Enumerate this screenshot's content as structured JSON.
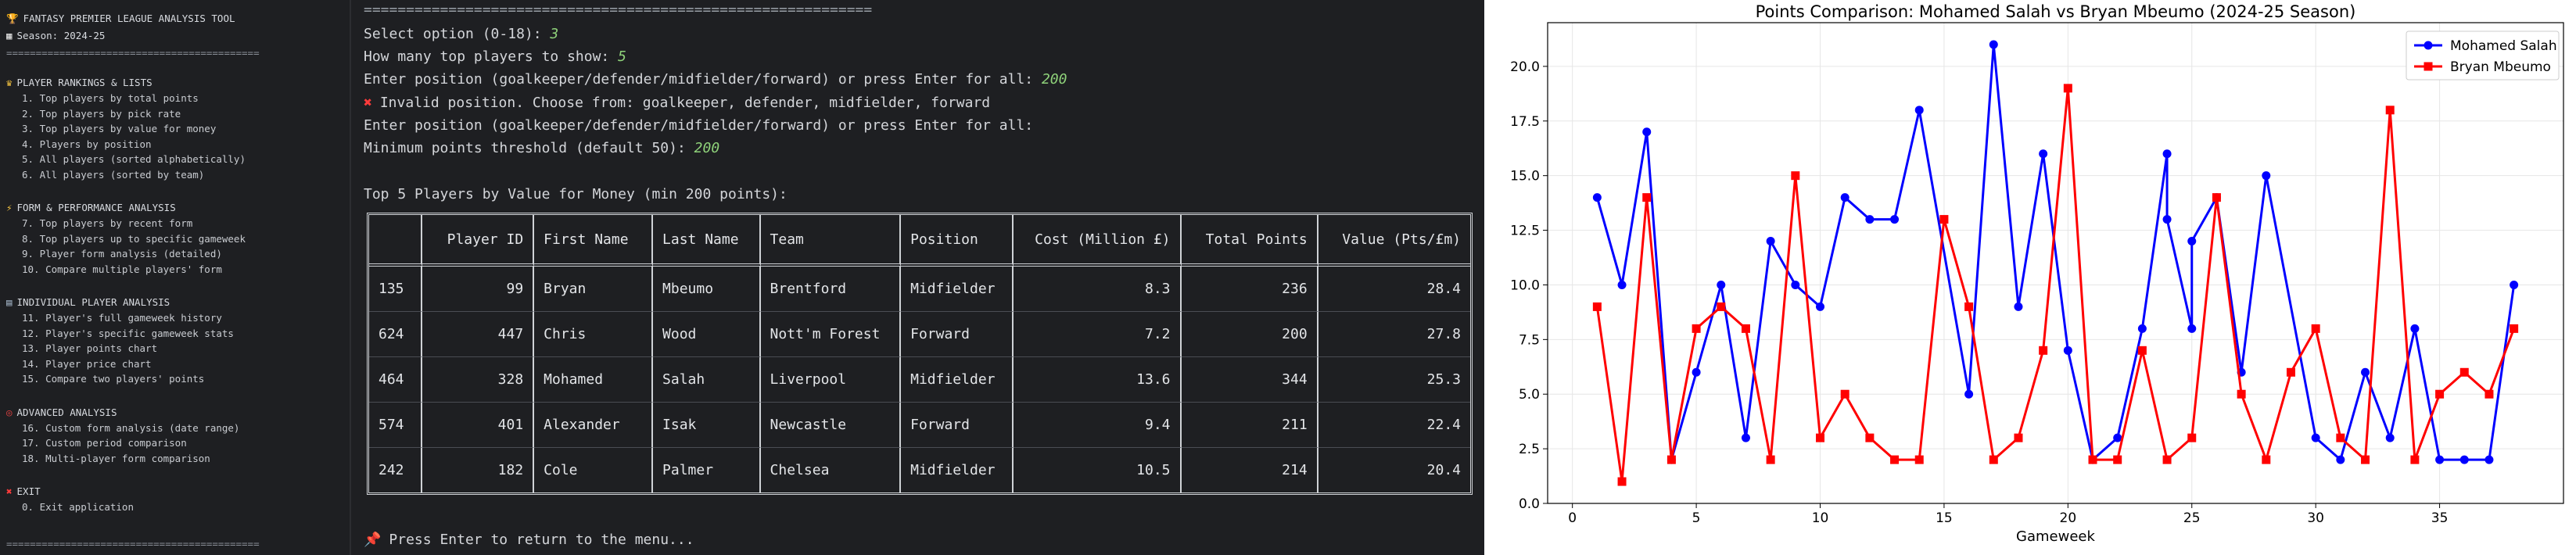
{
  "left_menu": {
    "title": "FANTASY PREMIER LEAGUE ANALYSIS TOOL",
    "season": "Season: 2024-25",
    "separator": "===========================================",
    "sections": [
      {
        "header": "PLAYER RANKINGS & LISTS",
        "icon": "crown-icon",
        "items": [
          "1. Top players by total points",
          "2. Top players by pick rate",
          "3. Top players by value for money",
          "4. Players by position",
          "5. All players (sorted alphabetically)",
          "6. All players (sorted by team)"
        ]
      },
      {
        "header": "FORM & PERFORMANCE ANALYSIS",
        "icon": "lightning-icon",
        "items": [
          "7. Top players by recent form",
          "8. Top players up to specific gameweek",
          "9. Player form analysis (detailed)",
          "10. Compare multiple players' form"
        ]
      },
      {
        "header": "INDIVIDUAL PLAYER ANALYSIS",
        "icon": "chart-icon",
        "items": [
          "11. Player's full gameweek history",
          "12. Player's specific gameweek stats",
          "13. Player points chart",
          "14. Player price chart",
          "15. Compare two players' points"
        ]
      },
      {
        "header": "ADVANCED ANALYSIS",
        "icon": "target-icon",
        "items": [
          "16. Custom form analysis (date range)",
          "17. Custom period comparison",
          "18. Multi-player form comparison"
        ]
      },
      {
        "header": "EXIT",
        "icon": "x-icon",
        "items": [
          "0. Exit application"
        ]
      }
    ]
  },
  "terminal": {
    "separator": "============================================================",
    "prompt_option": "Select option (0-18): ",
    "option_value": "3",
    "prompt_count": "How many top players to show: ",
    "count_value": "5",
    "prompt_position": "Enter position (goalkeeper/defender/midfielder/forward) or press Enter for all: ",
    "position_value": "200",
    "error_msg": "Invalid position. Choose from: goalkeeper, defender, midfielder, forward",
    "prompt_position2": "Enter position (goalkeeper/defender/midfielder/forward) or press Enter for all:",
    "prompt_min": "Minimum points threshold (default 50): ",
    "min_value": "200",
    "table_title": "Top 5 Players by Value for Money (min 200 points):",
    "table": {
      "headers": [
        "",
        "Player ID",
        "First Name",
        "Last Name",
        "Team",
        "Position",
        "Cost (Million £)",
        "Total Points",
        "Value (Pts/£m)"
      ],
      "rows": [
        [
          "135",
          "99",
          "Bryan",
          "Mbeumo",
          "Brentford",
          "Midfielder",
          "8.3",
          "236",
          "28.4"
        ],
        [
          "624",
          "447",
          "Chris",
          "Wood",
          "Nott'm Forest",
          "Forward",
          "7.2",
          "200",
          "27.8"
        ],
        [
          "464",
          "328",
          "Mohamed",
          "Salah",
          "Liverpool",
          "Midfielder",
          "13.6",
          "344",
          "25.3"
        ],
        [
          "574",
          "401",
          "Alexander",
          "Isak",
          "Newcastle",
          "Forward",
          "9.4",
          "211",
          "22.4"
        ],
        [
          "242",
          "182",
          "Cole",
          "Palmer",
          "Chelsea",
          "Midfielder",
          "10.5",
          "214",
          "20.4"
        ]
      ]
    },
    "return_msg": "Press Enter to return to the menu..."
  },
  "chart_data": {
    "type": "line",
    "title": "Points Comparison: Mohamed Salah vs Bryan Mbeumo (2024-25 Season)",
    "xlabel": "Gameweek",
    "ylabel": "",
    "xlim": [
      -1,
      40
    ],
    "ylim": [
      0,
      22
    ],
    "xticks": [
      0,
      5,
      10,
      15,
      20,
      25,
      30,
      35
    ],
    "yticks": [
      0.0,
      2.5,
      5.0,
      7.5,
      10.0,
      12.5,
      15.0,
      17.5,
      20.0
    ],
    "grid": true,
    "legend_position": "top-right",
    "series": [
      {
        "name": "Mohamed Salah",
        "color": "#0000ff",
        "marker": "circle",
        "points": [
          [
            1,
            14
          ],
          [
            2,
            10
          ],
          [
            3,
            17
          ],
          [
            4,
            2
          ],
          [
            5,
            6
          ],
          [
            6,
            10
          ],
          [
            7,
            3
          ],
          [
            8,
            12
          ],
          [
            9,
            10
          ],
          [
            10,
            9
          ],
          [
            11,
            14
          ],
          [
            12,
            13
          ],
          [
            13,
            13
          ],
          [
            14,
            18
          ],
          [
            16,
            5
          ],
          [
            17,
            21
          ],
          [
            18,
            9
          ],
          [
            19,
            16
          ],
          [
            20,
            7
          ],
          [
            21,
            2
          ],
          [
            22,
            3
          ],
          [
            23,
            8
          ],
          [
            24,
            16
          ],
          [
            24,
            13
          ],
          [
            25,
            8
          ],
          [
            25,
            12
          ],
          [
            26,
            14
          ],
          [
            27,
            6
          ],
          [
            28,
            15
          ],
          [
            30,
            3
          ],
          [
            31,
            2
          ],
          [
            32,
            6
          ],
          [
            33,
            3
          ],
          [
            34,
            8
          ],
          [
            35,
            2
          ],
          [
            36,
            2
          ],
          [
            37,
            2
          ],
          [
            38,
            10
          ]
        ]
      },
      {
        "name": "Bryan Mbeumo",
        "color": "#ff0000",
        "marker": "square",
        "points": [
          [
            1,
            9
          ],
          [
            2,
            1
          ],
          [
            3,
            14
          ],
          [
            4,
            2
          ],
          [
            5,
            8
          ],
          [
            6,
            9
          ],
          [
            7,
            8
          ],
          [
            8,
            2
          ],
          [
            9,
            15
          ],
          [
            10,
            3
          ],
          [
            11,
            5
          ],
          [
            12,
            3
          ],
          [
            13,
            2
          ],
          [
            14,
            2
          ],
          [
            15,
            13
          ],
          [
            16,
            9
          ],
          [
            17,
            2
          ],
          [
            18,
            3
          ],
          [
            19,
            7
          ],
          [
            20,
            19
          ],
          [
            21,
            2
          ],
          [
            22,
            2
          ],
          [
            23,
            7
          ],
          [
            24,
            2
          ],
          [
            25,
            3
          ],
          [
            26,
            14
          ],
          [
            27,
            5
          ],
          [
            28,
            2
          ],
          [
            29,
            6
          ],
          [
            30,
            8
          ],
          [
            31,
            3
          ],
          [
            32,
            2
          ],
          [
            33,
            18
          ],
          [
            34,
            2
          ],
          [
            35,
            5
          ],
          [
            36,
            6
          ],
          [
            37,
            5
          ],
          [
            38,
            8
          ]
        ]
      }
    ]
  }
}
